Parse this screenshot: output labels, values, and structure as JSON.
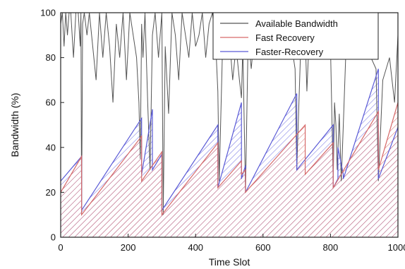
{
  "chart_data": {
    "type": "line",
    "title": "",
    "xlabel": "Time Slot",
    "ylabel": "Bandwidth (%)",
    "xlim": [
      0,
      1000
    ],
    "ylim": [
      0,
      100
    ],
    "x_ticks": [
      0,
      200,
      400,
      600,
      800,
      1000
    ],
    "x_tick_labels": [
      "0",
      "200",
      "400",
      "600",
      "800",
      "1000"
    ],
    "y_ticks": [
      0,
      20,
      40,
      60,
      80,
      100
    ],
    "y_tick_labels": [
      "0",
      "20",
      "40",
      "60",
      "80",
      "100"
    ],
    "grid": false,
    "legend_position": "top-right",
    "series": [
      {
        "name": "Available Bandwidth",
        "color": "#555555",
        "x": [
          0,
          5,
          10,
          15,
          20,
          25,
          30,
          38,
          45,
          52,
          58,
          60,
          62,
          65,
          70,
          78,
          85,
          95,
          105,
          115,
          125,
          135,
          145,
          155,
          165,
          175,
          185,
          195,
          205,
          215,
          225,
          232,
          236,
          240,
          244,
          250,
          258,
          265,
          272,
          280,
          290,
          300,
          304,
          310,
          320,
          330,
          340,
          350,
          360,
          370,
          380,
          390,
          400,
          410,
          420,
          430,
          440,
          450,
          460,
          466,
          470,
          480,
          490,
          500,
          510,
          520,
          530,
          536,
          540,
          548,
          556,
          565,
          580,
          600,
          620,
          640,
          660,
          680,
          695,
          700,
          715,
          725,
          730,
          740,
          760,
          780,
          800,
          808,
          812,
          816,
          820,
          826,
          832,
          838,
          845,
          860,
          880,
          900,
          920,
          935,
          942,
          955,
          975,
          990,
          1000
        ],
        "values": [
          95,
          100,
          85,
          100,
          90,
          100,
          100,
          80,
          100,
          100,
          85,
          100,
          10,
          95,
          100,
          90,
          100,
          85,
          70,
          100,
          80,
          100,
          85,
          60,
          95,
          80,
          100,
          70,
          100,
          90,
          80,
          60,
          35,
          95,
          80,
          100,
          60,
          30,
          90,
          100,
          80,
          100,
          10,
          85,
          55,
          100,
          90,
          70,
          100,
          90,
          80,
          100,
          85,
          90,
          100,
          80,
          95,
          100,
          85,
          65,
          25,
          85,
          80,
          90,
          70,
          85,
          70,
          62,
          85,
          20,
          90,
          75,
          100,
          95,
          80,
          100,
          85,
          90,
          75,
          30,
          100,
          90,
          65,
          100,
          85,
          80,
          85,
          25,
          60,
          50,
          30,
          55,
          25,
          50,
          80,
          95,
          85,
          90,
          80,
          75,
          25,
          70,
          80,
          60,
          90
        ]
      },
      {
        "name": "Fast Recovery",
        "color": "#d66a6a",
        "x": [
          0,
          62,
          62,
          240,
          240,
          300,
          300,
          466,
          466,
          536,
          536,
          548,
          548,
          725,
          725,
          808,
          808,
          942,
          942,
          1000
        ],
        "values": [
          20,
          36,
          10,
          45,
          25,
          38,
          10,
          42,
          22,
          34,
          28,
          30,
          20,
          50,
          28,
          42,
          22,
          56,
          30,
          60
        ]
      },
      {
        "name": "Faster-Recovery",
        "color": "#5a5ad6",
        "x": [
          0,
          62,
          62,
          240,
          240,
          272,
          272,
          300,
          300,
          466,
          466,
          536,
          536,
          548,
          548,
          700,
          700,
          808,
          808,
          822,
          822,
          838,
          838,
          942,
          942,
          1000
        ],
        "values": [
          25,
          36,
          12,
          53,
          28,
          57,
          30,
          37,
          12,
          50,
          22,
          60,
          26,
          32,
          20,
          64,
          30,
          50,
          22,
          26,
          40,
          28,
          26,
          75,
          26,
          49
        ]
      }
    ]
  }
}
